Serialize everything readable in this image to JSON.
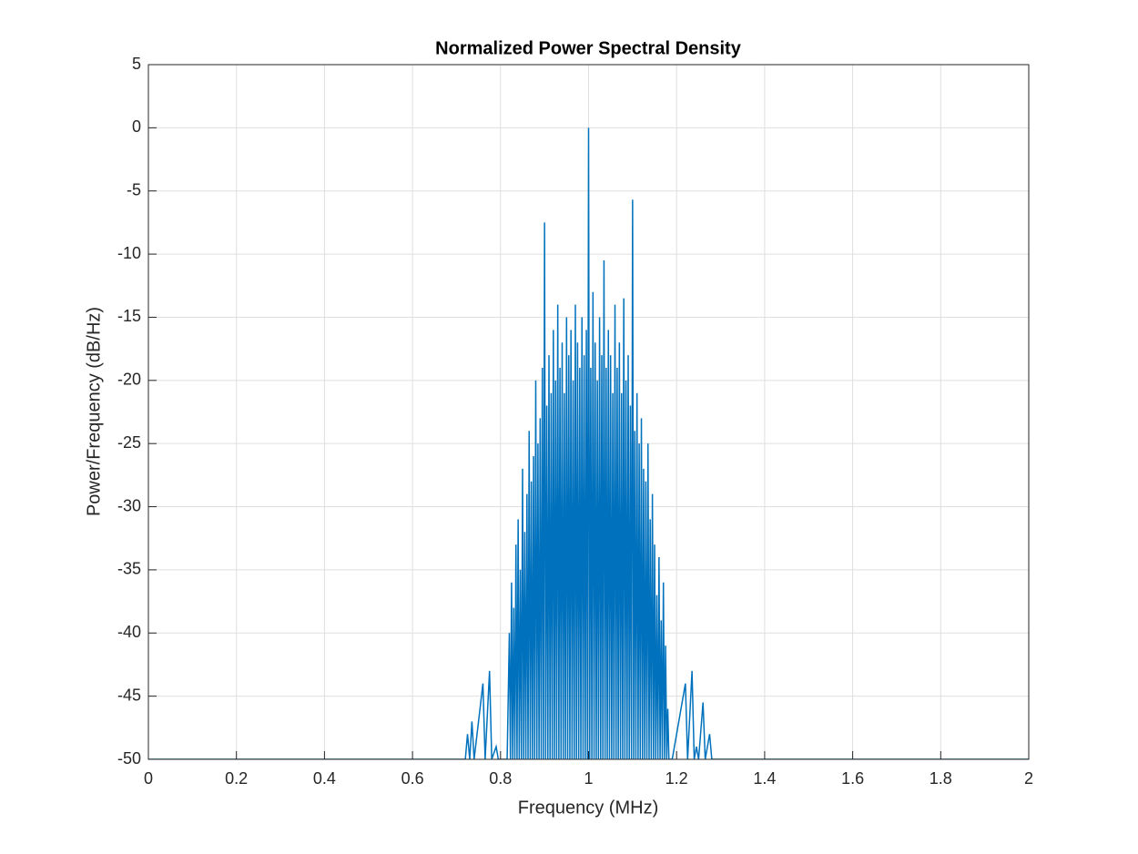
{
  "chart_data": {
    "type": "line",
    "title": "Normalized Power Spectral Density",
    "x_label": "Frequency (MHz)",
    "y_label": "Power/Frequency (dB/Hz)",
    "color": "#0072bd",
    "grid": true,
    "xlim": [
      0,
      2
    ],
    "ylim": [
      -50,
      5
    ],
    "xticks": [
      0,
      0.2,
      0.4,
      0.6,
      0.8,
      1,
      1.2,
      1.4,
      1.6,
      1.8,
      2
    ],
    "yticks": [
      5,
      0,
      -5,
      -10,
      -15,
      -20,
      -25,
      -30,
      -35,
      -40,
      -45,
      -50
    ],
    "x": [
      0,
      0.72,
      0.725,
      0.73,
      0.735,
      0.74,
      0.76,
      0.765,
      0.775,
      0.78,
      0.79,
      0.795,
      0.815,
      0.82,
      0.8225,
      0.825,
      0.8275,
      0.83,
      0.8325,
      0.835,
      0.8375,
      0.84,
      0.8425,
      0.845,
      0.8475,
      0.85,
      0.8525,
      0.855,
      0.8575,
      0.86,
      0.8625,
      0.865,
      0.8675,
      0.87,
      0.8725,
      0.875,
      0.8775,
      0.88,
      0.8825,
      0.885,
      0.8875,
      0.89,
      0.8925,
      0.895,
      0.8975,
      0.9,
      0.9025,
      0.905,
      0.9075,
      0.91,
      0.9125,
      0.915,
      0.9175,
      0.92,
      0.9225,
      0.925,
      0.9275,
      0.93,
      0.9325,
      0.935,
      0.9375,
      0.94,
      0.9425,
      0.945,
      0.9475,
      0.95,
      0.9525,
      0.955,
      0.9575,
      0.96,
      0.9625,
      0.965,
      0.9675,
      0.97,
      0.9725,
      0.975,
      0.9775,
      0.98,
      0.9825,
      0.985,
      0.9875,
      0.99,
      0.9925,
      0.995,
      0.9975,
      1,
      1.0025,
      1.005,
      1.0075,
      1.01,
      1.0125,
      1.015,
      1.0175,
      1.02,
      1.0225,
      1.025,
      1.0275,
      1.03,
      1.0325,
      1.035,
      1.0375,
      1.04,
      1.0425,
      1.045,
      1.0475,
      1.05,
      1.0525,
      1.055,
      1.0575,
      1.06,
      1.0625,
      1.065,
      1.0675,
      1.07,
      1.0725,
      1.075,
      1.0775,
      1.08,
      1.0825,
      1.085,
      1.0875,
      1.09,
      1.0925,
      1.095,
      1.0975,
      1.1,
      1.1025,
      1.105,
      1.1075,
      1.11,
      1.1125,
      1.115,
      1.1175,
      1.12,
      1.1225,
      1.125,
      1.1275,
      1.13,
      1.1325,
      1.135,
      1.1375,
      1.14,
      1.1425,
      1.145,
      1.1475,
      1.15,
      1.1525,
      1.155,
      1.1575,
      1.16,
      1.1625,
      1.165,
      1.1675,
      1.17,
      1.1725,
      1.175,
      1.1775,
      1.18,
      1.1825,
      1.19,
      1.22,
      1.225,
      1.235,
      1.24,
      1.245,
      1.25,
      1.26,
      1.265,
      1.275,
      1.28,
      2
    ],
    "values": [
      -50,
      -50,
      -48,
      -50,
      -47,
      -50,
      -44,
      -50,
      -43,
      -50,
      -49,
      -50,
      -50,
      -40,
      -50,
      -36,
      -50,
      -38,
      -50,
      -33,
      -50,
      -31,
      -50,
      -35,
      -50,
      -27,
      -50,
      -32,
      -50,
      -29,
      -50,
      -24,
      -50,
      -28,
      -50,
      -26,
      -50,
      -20,
      -50,
      -25,
      -50,
      -23,
      -50,
      -19,
      -50,
      -7.5,
      -50,
      -22,
      -50,
      -18,
      -50,
      -21,
      -50,
      -16,
      -50,
      -20,
      -50,
      -14,
      -50,
      -19,
      -50,
      -17,
      -50,
      -21,
      -50,
      -15,
      -50,
      -18,
      -50,
      -16,
      -50,
      -20,
      -50,
      -14,
      -50,
      -17,
      -50,
      -19,
      -50,
      -15,
      -50,
      -18,
      -50,
      -16,
      -50,
      0,
      -50,
      -19,
      -50,
      -13,
      -50,
      -17,
      -50,
      -20,
      -50,
      -15,
      -50,
      -18,
      -50,
      -10.5,
      -50,
      -19,
      -50,
      -16,
      -50,
      -18,
      -50,
      -21,
      -50,
      -14,
      -50,
      -19,
      -50,
      -17,
      -50,
      -21,
      -50,
      -13.5,
      -50,
      -20,
      -50,
      -18,
      -50,
      -22,
      -50,
      -5.7,
      -50,
      -24,
      -50,
      -21,
      -50,
      -25,
      -50,
      -23,
      -50,
      -27,
      -50,
      -28,
      -50,
      -25,
      -50,
      -31,
      -50,
      -29,
      -50,
      -33,
      -50,
      -37,
      -50,
      -34,
      -50,
      -39,
      -50,
      -36,
      -50,
      -41,
      -50,
      -46,
      -50,
      -50,
      -44,
      -50,
      -43,
      -50,
      -49,
      -50,
      -45.5,
      -50,
      -48,
      -50,
      -50
    ]
  }
}
